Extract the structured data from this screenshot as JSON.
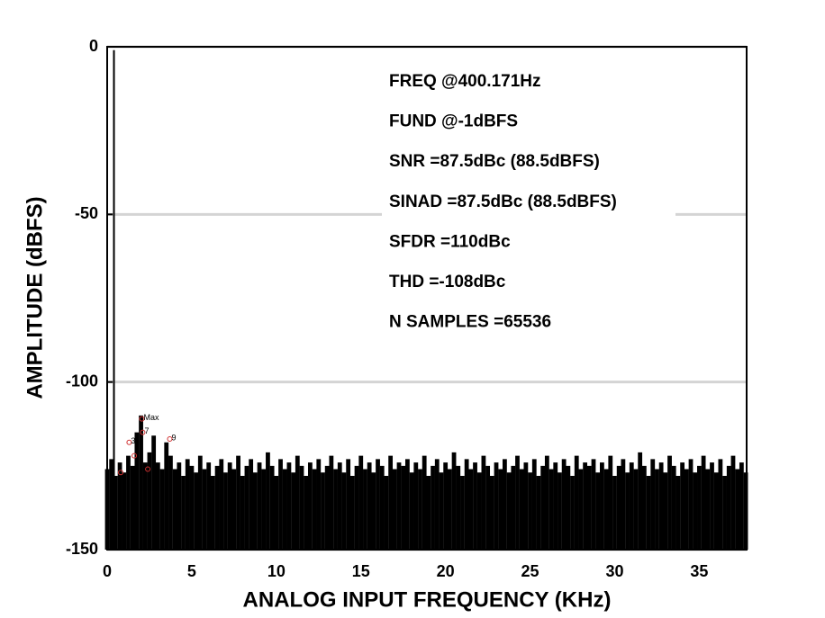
{
  "chart_data": {
    "type": "stem",
    "x_label": "ANALOG INPUT FREQUENCY (KHz)",
    "y_label": "AMPLITUDE (dBFS)",
    "xlim": [
      0,
      37.8
    ],
    "xticks": [
      0,
      5,
      10,
      15,
      20,
      25,
      30,
      35
    ],
    "ylim": [
      -150,
      0
    ],
    "yticks": [
      -150,
      -100,
      -50,
      0
    ],
    "grid": true,
    "annotations": [
      "FREQ @400.171Hz",
      "FUND @-1dBFS",
      "SNR =87.5dBc (88.5dBFS)",
      "SINAD =87.5dBc (88.5dBFS)",
      "SFDR =110dBc",
      "THD =-108dBc",
      "N SAMPLES =65536"
    ],
    "fundamental": {
      "x": 0.4,
      "value": -1,
      "color": "#000000"
    },
    "markers": [
      {
        "x": 0.8,
        "y": -127
      },
      {
        "x": 1.3,
        "y": -118,
        "label": "3"
      },
      {
        "x": 1.6,
        "y": -122
      },
      {
        "x": 2.05,
        "y": -111,
        "label": "Max"
      },
      {
        "x": 2.1,
        "y": -115,
        "label": "7"
      },
      {
        "x": 2.4,
        "y": -126
      },
      {
        "x": 3.7,
        "y": -117,
        "label": "9"
      }
    ],
    "marker_color": "#d03030",
    "series": [
      {
        "color": "#000000",
        "x": [
          0,
          0.25,
          0.5,
          0.75,
          1,
          1.25,
          1.5,
          1.75,
          2,
          2.25,
          2.5,
          2.75,
          3,
          3.25,
          3.5,
          3.75,
          4,
          4.25,
          4.5,
          4.75,
          5,
          5.25,
          5.5,
          5.75,
          6,
          6.25,
          6.5,
          6.75,
          7,
          7.25,
          7.5,
          7.75,
          8,
          8.25,
          8.5,
          8.75,
          9,
          9.25,
          9.5,
          9.75,
          10,
          10.25,
          10.5,
          10.75,
          11,
          11.25,
          11.5,
          11.75,
          12,
          12.25,
          12.5,
          12.75,
          13,
          13.25,
          13.5,
          13.75,
          14,
          14.25,
          14.5,
          14.75,
          15,
          15.25,
          15.5,
          15.75,
          16,
          16.25,
          16.5,
          16.75,
          17,
          17.25,
          17.5,
          17.75,
          18,
          18.25,
          18.5,
          18.75,
          19,
          19.25,
          19.5,
          19.75,
          20,
          20.25,
          20.5,
          20.75,
          21,
          21.25,
          21.5,
          21.75,
          22,
          22.25,
          22.5,
          22.75,
          23,
          23.25,
          23.5,
          23.75,
          24,
          24.25,
          24.5,
          24.75,
          25,
          25.25,
          25.5,
          25.75,
          26,
          26.25,
          26.5,
          26.75,
          27,
          27.25,
          27.5,
          27.75,
          28,
          28.25,
          28.5,
          28.75,
          29,
          29.25,
          29.5,
          29.75,
          30,
          30.25,
          30.5,
          30.75,
          31,
          31.25,
          31.5,
          31.75,
          32,
          32.25,
          32.5,
          32.75,
          33,
          33.25,
          33.5,
          33.75,
          34,
          34.25,
          34.5,
          34.75,
          35,
          35.25,
          35.5,
          35.75,
          36,
          36.25,
          36.5,
          36.75,
          37,
          37.25,
          37.5,
          37.75
        ],
        "values": [
          -126,
          -123,
          -128,
          -124,
          -127,
          -122,
          -125,
          -115,
          -110,
          -124,
          -121,
          -116,
          -124,
          -126,
          -118,
          -122,
          -126,
          -124,
          -128,
          -123,
          -125,
          -127,
          -122,
          -126,
          -124,
          -128,
          -125,
          -123,
          -127,
          -124,
          -126,
          -122,
          -128,
          -125,
          -123,
          -127,
          -124,
          -126,
          -121,
          -125,
          -128,
          -123,
          -126,
          -124,
          -127,
          -122,
          -125,
          -128,
          -124,
          -126,
          -123,
          -127,
          -125,
          -122,
          -126,
          -124,
          -127,
          -123,
          -128,
          -125,
          -122,
          -126,
          -124,
          -127,
          -123,
          -125,
          -128,
          -122,
          -126,
          -124,
          -125,
          -123,
          -127,
          -124,
          -126,
          -122,
          -128,
          -125,
          -123,
          -127,
          -124,
          -126,
          -121,
          -125,
          -128,
          -123,
          -126,
          -124,
          -127,
          -122,
          -125,
          -128,
          -124,
          -126,
          -123,
          -127,
          -125,
          -122,
          -126,
          -124,
          -127,
          -123,
          -128,
          -125,
          -122,
          -126,
          -124,
          -127,
          -123,
          -125,
          -128,
          -122,
          -126,
          -124,
          -125,
          -123,
          -127,
          -124,
          -126,
          -122,
          -128,
          -125,
          -123,
          -127,
          -124,
          -126,
          -121,
          -125,
          -128,
          -123,
          -126,
          -124,
          -127,
          -122,
          -125,
          -128,
          -124,
          -126,
          -123,
          -127,
          -125,
          -122,
          -126,
          -124,
          -127,
          -123,
          -128,
          -125,
          -122,
          -126,
          -124,
          -127
        ]
      }
    ]
  }
}
